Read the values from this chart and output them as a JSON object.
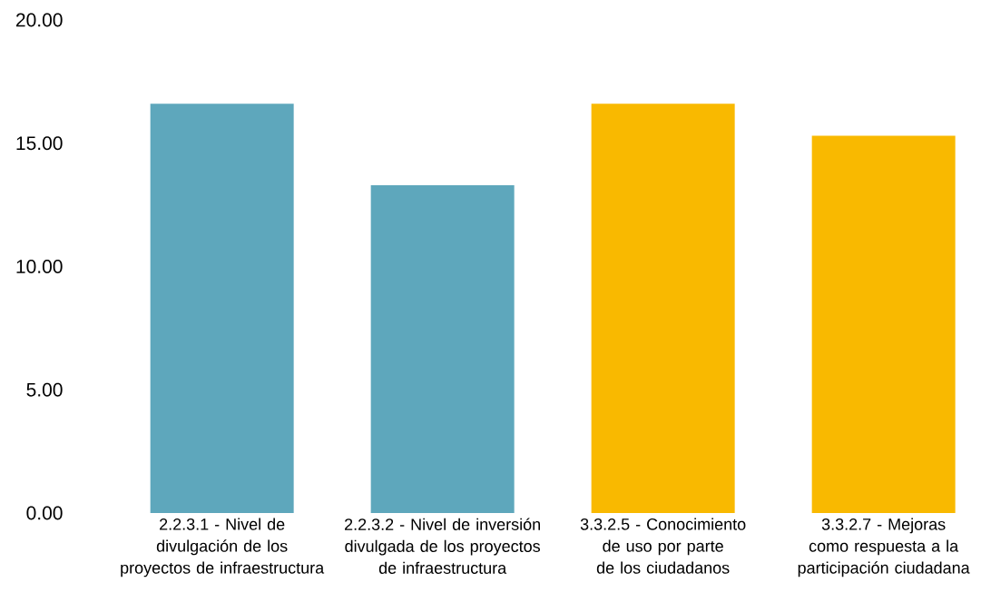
{
  "chart_data": {
    "type": "bar",
    "categories": [
      "2.2.3.1 - Nivel de divulgación de los proyectos de infraestructura",
      "2.2.3.2 - Nivel de inversión divulgada de los proyectos de infraestructura",
      "3.3.2.5 - Conocimiento de uso por parte de los ciudadanos",
      "3.3.2.7 - Mejoras como respuesta a la participación ciudadana"
    ],
    "values": [
      16.6,
      13.3,
      16.6,
      15.3
    ],
    "colors": [
      "#5ea7bc",
      "#5ea7bc",
      "#f9b900",
      "#f9b900"
    ],
    "ylim": [
      0,
      20
    ],
    "yticks": [
      {
        "value": 0,
        "label": "0.00"
      },
      {
        "value": 5,
        "label": "5.00"
      },
      {
        "value": 10,
        "label": "10.00"
      },
      {
        "value": 15,
        "label": "15.00"
      },
      {
        "value": 20,
        "label": "20.00"
      }
    ],
    "grid": false
  }
}
